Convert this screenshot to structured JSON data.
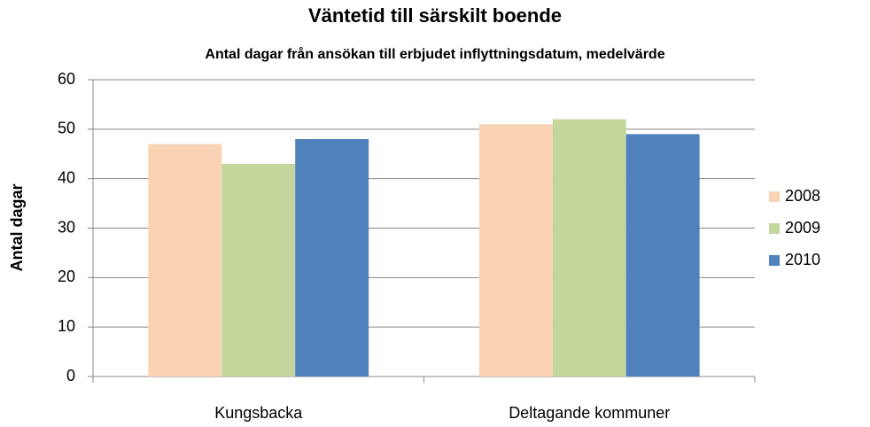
{
  "chart_data": {
    "type": "bar",
    "title": "Väntetid till särskilt boende",
    "subtitle": "Antal dagar från ansökan till erbjudet inflyttningsdatum, medelvärde",
    "y_label": "Antal dagar",
    "categories": [
      "Kungsbacka",
      "Deltagande kommuner"
    ],
    "series": [
      {
        "name": "2008",
        "color": "#fad3b4",
        "values": [
          47,
          51
        ]
      },
      {
        "name": "2009",
        "color": "#c3d69b",
        "values": [
          43,
          52
        ]
      },
      {
        "name": "2010",
        "color": "#4f81bd",
        "values": [
          48,
          49
        ]
      }
    ],
    "ylim": [
      0,
      60
    ],
    "yticks": [
      0,
      10,
      20,
      30,
      40,
      50,
      60
    ],
    "grid": true,
    "legend": "right"
  }
}
